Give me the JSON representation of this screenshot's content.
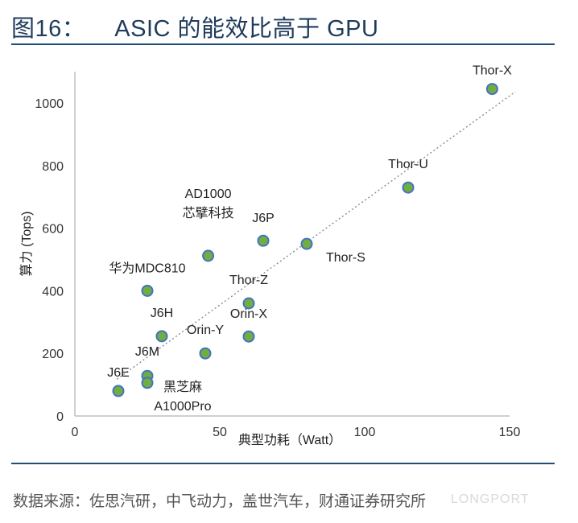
{
  "header": {
    "figure_no": "图16：",
    "title": "ASIC 的能效比高于 GPU"
  },
  "footer": {
    "source": "数据来源：佐思汽研，中飞动力，盖世汽车，财通证券研究所",
    "watermark": "LONGPORT"
  },
  "colors": {
    "marker_fill": "#6fae3f",
    "marker_stroke": "#4472c4",
    "trendline": "#8c8c8c",
    "rule": "#1f4e79"
  },
  "chart_data": {
    "type": "scatter",
    "xlabel": "典型功耗（Watt）",
    "ylabel": "算力 (Tops)",
    "xlim": [
      0,
      150
    ],
    "ylim": [
      0,
      1100
    ],
    "x_ticks": [
      0,
      50,
      100,
      150
    ],
    "y_ticks": [
      0,
      200,
      400,
      600,
      800,
      1000
    ],
    "grid": false,
    "trendline": "linear",
    "points": [
      {
        "label": "Thor-X",
        "x": 144,
        "y": 1045
      },
      {
        "label": "Thor-U",
        "x": 115,
        "y": 730
      },
      {
        "label": "Thor-S",
        "x": 80,
        "y": 550
      },
      {
        "label": "J6P",
        "x": 65,
        "y": 560
      },
      {
        "label": "芯擘科技",
        "label2": "AD1000",
        "x": 46,
        "y": 512
      },
      {
        "label": "华为MDC810",
        "x": 25,
        "y": 400
      },
      {
        "label": "Thor-Z",
        "x": 60,
        "y": 360
      },
      {
        "label": "Orin-X",
        "x": 60,
        "y": 254
      },
      {
        "label": "J6H",
        "x": 30,
        "y": 255
      },
      {
        "label": "Orin-Y",
        "x": 45,
        "y": 200
      },
      {
        "label": "J6M",
        "x": 25,
        "y": 128
      },
      {
        "label": "黑芝麻",
        "label2": "A1000Pro",
        "x": 25,
        "y": 106
      },
      {
        "label": "J6E",
        "x": 15,
        "y": 80
      }
    ]
  }
}
